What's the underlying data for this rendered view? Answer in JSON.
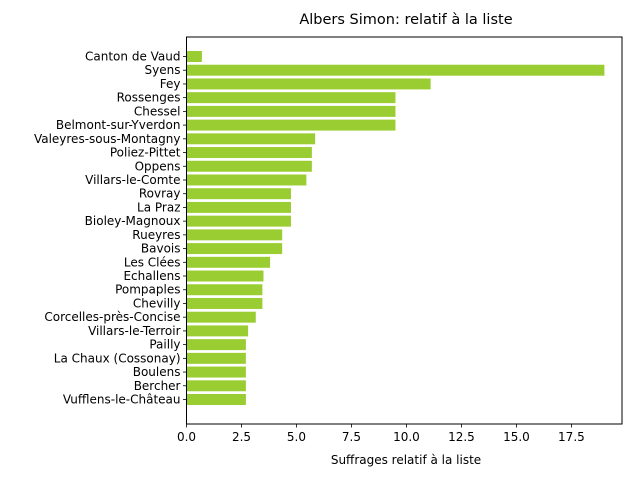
{
  "chart_data": {
    "type": "bar",
    "orientation": "horizontal",
    "title": "Albers Simon: relatif à la liste",
    "xlabel": "Suffrages relatif à la liste",
    "ylabel": "",
    "xlim": [
      0,
      19.8
    ],
    "xticks": [
      0.0,
      2.5,
      5.0,
      7.5,
      10.0,
      12.5,
      15.0,
      17.5
    ],
    "xtick_labels": [
      "0.0",
      "2.5",
      "5.0",
      "7.5",
      "10.0",
      "12.5",
      "15.0",
      "17.5"
    ],
    "grid": false,
    "legend": "none",
    "bar_color": "#9acd32",
    "categories": [
      "Canton de Vaud",
      "Syens",
      "Fey",
      "Rossenges",
      "Chessel",
      "Belmont-sur-Yverdon",
      "Valeyres-sous-Montagny",
      "Poliez-Pittet",
      "Oppens",
      "Villars-le-Comte",
      "Rovray",
      "La Praz",
      "Bioley-Magnoux",
      "Rueyres",
      "Bavois",
      "Les Clées",
      "Echallens",
      "Pompaples",
      "Chevilly",
      "Corcelles-près-Concise",
      "Villars-le-Terroir",
      "Pailly",
      "La Chaux (Cossonay)",
      "Boulens",
      "Bercher",
      "Vufflens-le-Château"
    ],
    "values": [
      0.7,
      19.0,
      11.1,
      9.5,
      9.5,
      9.5,
      5.85,
      5.7,
      5.7,
      5.45,
      4.75,
      4.75,
      4.75,
      4.35,
      4.35,
      3.8,
      3.5,
      3.45,
      3.45,
      3.15,
      2.8,
      2.7,
      2.7,
      2.7,
      2.7,
      2.7
    ]
  }
}
